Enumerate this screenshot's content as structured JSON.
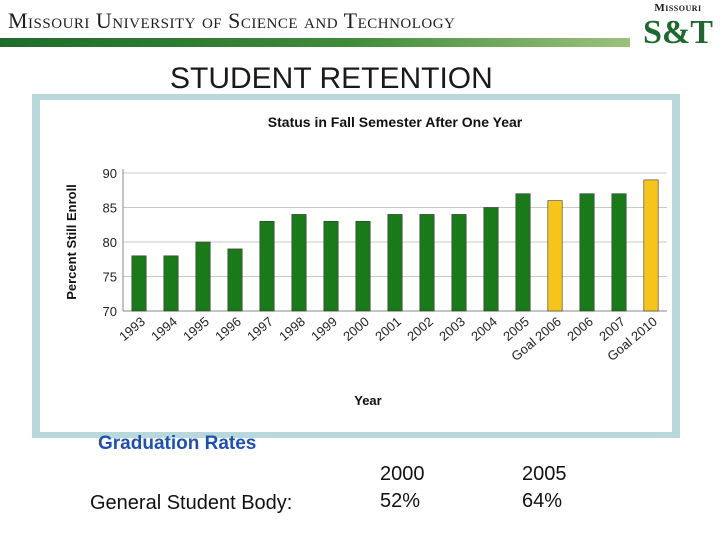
{
  "header": {
    "title": "Missouri University of Science and Technology",
    "logo_top": "Missouri",
    "logo_main": "S&T"
  },
  "slide_title": "STUDENT RETENTION",
  "chart_data": {
    "type": "bar",
    "title": "Status in Fall Semester After One Year",
    "xlabel": "Year",
    "ylabel": "Percent Still Enroll",
    "ylim": [
      70,
      90
    ],
    "yticks": [
      70,
      75,
      80,
      85,
      90
    ],
    "grid": true,
    "categories": [
      "1993",
      "1994",
      "1995",
      "1996",
      "1997",
      "1998",
      "1999",
      "2000",
      "2001",
      "2002",
      "2003",
      "2004",
      "2005",
      "Goal 2006",
      "2006",
      "2007",
      "Goal 2010"
    ],
    "values": [
      78,
      78,
      80,
      79,
      83,
      84,
      83,
      83,
      84,
      84,
      84,
      85,
      87,
      86,
      87,
      87,
      89
    ],
    "bar_colors": [
      "#1a7a1a",
      "#1a7a1a",
      "#1a7a1a",
      "#1a7a1a",
      "#1a7a1a",
      "#1a7a1a",
      "#1a7a1a",
      "#1a7a1a",
      "#1a7a1a",
      "#1a7a1a",
      "#1a7a1a",
      "#1a7a1a",
      "#1a7a1a",
      "#f5c518",
      "#1a7a1a",
      "#1a7a1a",
      "#f5c518"
    ]
  },
  "graduation": {
    "heading": "Graduation Rates",
    "row_label": "General Student Body:",
    "columns": [
      {
        "year": "2000",
        "rate": "52%"
      },
      {
        "year": "2005",
        "rate": "64%"
      }
    ]
  },
  "colors": {
    "accent_green": "#1f6b2a",
    "goal_yellow": "#f5c518",
    "heading_blue": "#1f4fb4",
    "frame": "#b8d8dc"
  }
}
